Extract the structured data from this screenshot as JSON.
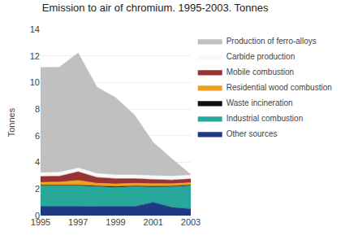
{
  "chart_data": {
    "type": "area",
    "title": "Emission to air of chromium. 1995-2003. Tonnes",
    "ylabel": "Tonnes",
    "x": [
      1995,
      1996,
      1997,
      1998,
      1999,
      2000,
      2001,
      2002,
      2003
    ],
    "series": [
      {
        "name": "Other sources",
        "color": "#1e3a82",
        "values": [
          0.7,
          0.72,
          0.7,
          0.68,
          0.68,
          0.68,
          1.0,
          0.62,
          0.5
        ]
      },
      {
        "name": "Industrial combustion",
        "color": "#28a89a",
        "values": [
          1.55,
          1.55,
          1.55,
          1.5,
          1.45,
          1.5,
          1.15,
          1.55,
          1.75
        ]
      },
      {
        "name": "Waste incineration",
        "color": "#101010",
        "values": [
          0.05,
          0.05,
          0.05,
          0.05,
          0.05,
          0.05,
          0.05,
          0.05,
          0.05
        ]
      },
      {
        "name": "Residential wood combustion",
        "color": "#f0a020",
        "values": [
          0.2,
          0.2,
          0.35,
          0.2,
          0.2,
          0.2,
          0.2,
          0.18,
          0.18
        ]
      },
      {
        "name": "Mobile combustion",
        "color": "#993333",
        "values": [
          0.45,
          0.45,
          0.65,
          0.45,
          0.4,
          0.35,
          0.32,
          0.28,
          0.28
        ]
      },
      {
        "name": "Carbide production",
        "color": "#f8f8f8",
        "values": [
          0.28,
          0.28,
          0.28,
          0.28,
          0.28,
          0.28,
          0.28,
          0.28,
          0.28
        ]
      },
      {
        "name": "Production of ferro-alloys",
        "color": "#c0c0c0",
        "values": [
          7.9,
          7.9,
          8.65,
          6.5,
          5.8,
          4.5,
          2.5,
          1.3,
          0.05
        ]
      }
    ],
    "stacked": true,
    "xlim": [
      1995,
      2003
    ],
    "xticks": [
      1995,
      1997,
      1999,
      2001,
      2003
    ],
    "ylim": [
      0,
      14
    ],
    "yticks": [
      0,
      2,
      4,
      6,
      8,
      10,
      12,
      14
    ],
    "grid": true,
    "legend": "right"
  }
}
